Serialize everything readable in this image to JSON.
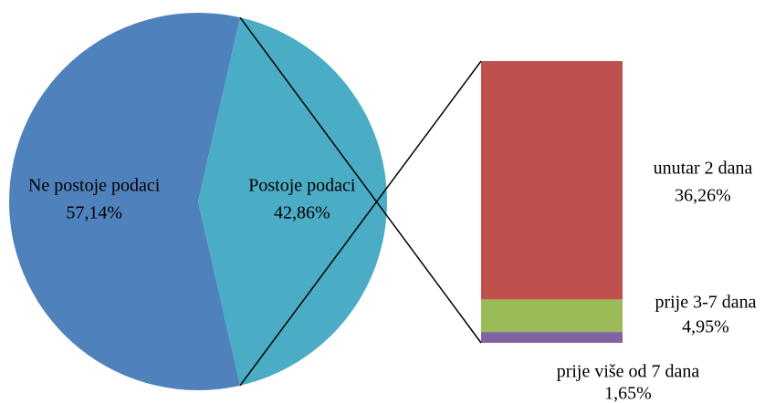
{
  "chart_data": [
    {
      "type": "pie",
      "categories": [
        "Ne postoje podaci",
        "Postoje podaci"
      ],
      "values": [
        57.14,
        42.86
      ],
      "value_labels": [
        "57,14%",
        "42,86%"
      ],
      "colors": [
        "#4f81bd",
        "#4bacc6"
      ]
    },
    {
      "type": "bar",
      "stacked": true,
      "categories": [
        "unutar 2 dana",
        "prije 3-7 dana",
        "prije više od 7 dana"
      ],
      "values": [
        36.26,
        4.95,
        1.65
      ],
      "value_labels": [
        "36,26%",
        "4,95%",
        "1,65%"
      ],
      "colors": [
        "#c0504d",
        "#9bbb59",
        "#8064a2"
      ]
    }
  ]
}
